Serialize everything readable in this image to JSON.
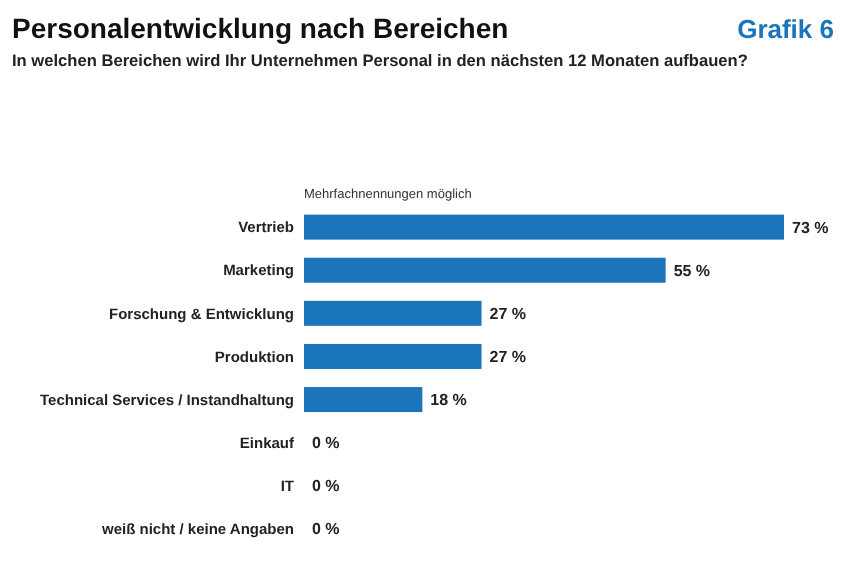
{
  "chart_data": {
    "type": "bar",
    "orientation": "horizontal",
    "title": "Personalentwicklung nach Bereichen",
    "subtitle": "In welchen Bereichen wird Ihr Unternehmen Personal in den nächsten 12 Monaten aufbauen?",
    "annotations": [
      "Grafik 6",
      "Mehrfachnennungen möglich"
    ],
    "categories": [
      "Vertrieb",
      "Marketing",
      "Forschung & Entwicklung",
      "Produktion",
      "Technical Services / Instandhaltung",
      "Einkauf",
      "IT",
      "weiß nicht / keine Angaben"
    ],
    "values": [
      73,
      55,
      27,
      27,
      18,
      0,
      0,
      0
    ],
    "value_labels": [
      "73 %",
      "55 %",
      "27 %",
      "27 %",
      "18 %",
      "0 %",
      "0 %",
      "0 %"
    ],
    "color": "#1b75bb"
  }
}
